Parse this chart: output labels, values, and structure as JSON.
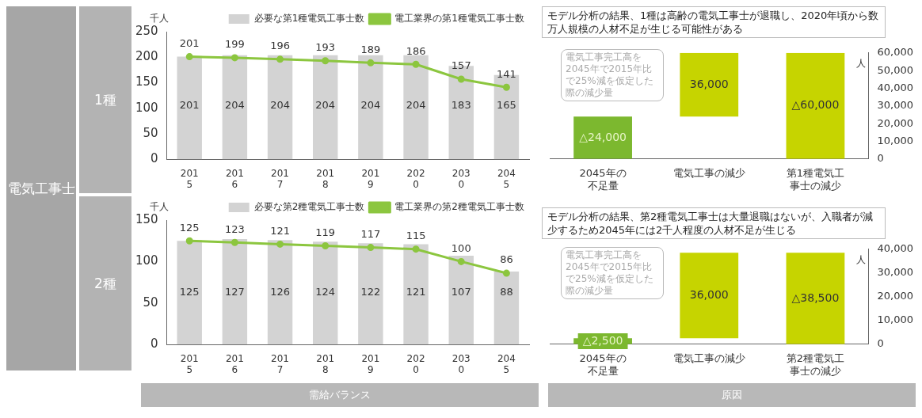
{
  "chart_data": [
    {
      "type": "bar",
      "ylabel": "千人",
      "categories": [
        "2015",
        "2016",
        "2017",
        "2018",
        "2019",
        "2020",
        "2030",
        "2045"
      ],
      "ylim": [
        0,
        250
      ],
      "yticks": [
        0,
        50,
        100,
        150,
        200,
        250
      ],
      "grid": false,
      "legend": "top right",
      "data_labels": true,
      "marker": "circle",
      "annotations": [
        "電気工事士",
        "1種",
        "需給バランス"
      ],
      "series": [
        {
          "name": "必要な第1種電気工事士数",
          "type": "bar",
          "color": "#d3d3d3",
          "values": [
            201,
            204,
            204,
            204,
            204,
            204,
            183,
            165
          ]
        },
        {
          "name": "電工業界の第1種電気工事士数",
          "type": "line",
          "color": "#8cc63f",
          "values": [
            201,
            199,
            196,
            193,
            189,
            186,
            157,
            141
          ]
        }
      ]
    },
    {
      "type": "bar",
      "title": "モデル分析の結果、1種は高齢の電気工事士が退職し、2020年頃から数万人規模の人材不足が生じる可能性がある",
      "ylabel": "人",
      "categories": [
        "2045年の不足量",
        "電気工事の減少",
        "第1種電気工事士の減少"
      ],
      "ylim": [
        0,
        60000
      ],
      "yticks": [
        0,
        {
          "value": 10000,
          "label": "10,000"
        },
        {
          "value": 20000,
          "label": "20,000"
        },
        {
          "value": 30000,
          "label": "30,000"
        },
        {
          "value": 40000,
          "label": "40,000"
        },
        {
          "value": 50000,
          "label": "50,000"
        },
        {
          "value": 60000,
          "label": "60,000"
        }
      ],
      "grid": false,
      "base": [
        0,
        24000,
        0
      ],
      "values": [
        24000,
        36000,
        60000
      ],
      "colors": [
        "#7cb82f",
        "#c6d400",
        "#c6d400"
      ],
      "value_labels": [
        "△24,000",
        "36,000",
        "△60,000"
      ],
      "annotations": [
        "電気工事完工高を2045年で2015年比で25%減を仮定した際の減少量",
        "原因"
      ]
    },
    {
      "type": "bar",
      "ylabel": "千人",
      "categories": [
        "2015",
        "2016",
        "2017",
        "2018",
        "2019",
        "2020",
        "2030",
        "2045"
      ],
      "ylim": [
        0,
        150
      ],
      "yticks": [
        0,
        50,
        100,
        150
      ],
      "grid": false,
      "legend": "top right",
      "data_labels": true,
      "marker": "circle",
      "annotations": [
        "2種"
      ],
      "series": [
        {
          "name": "必要な第2種電気工事士数",
          "type": "bar",
          "color": "#d3d3d3",
          "values": [
            125,
            127,
            126,
            124,
            122,
            121,
            107,
            88
          ]
        },
        {
          "name": "電工業界の第2種電気工事士数",
          "type": "line",
          "color": "#8cc63f",
          "values": [
            125,
            123,
            121,
            119,
            117,
            115,
            100,
            86
          ]
        }
      ]
    },
    {
      "type": "bar",
      "title": "モデル分析の結果、第2種電気工事士は大量退職はないが、入職者が減少するため2045年には2千人程度の人材不足が生じる",
      "ylabel": "人",
      "categories": [
        "2045年の不足量",
        "電気工事の減少",
        "第2種電気工事士の減少"
      ],
      "ylim": [
        0,
        40000
      ],
      "yticks": [
        0,
        {
          "value": 10000,
          "label": "10,000"
        },
        {
          "value": 20000,
          "label": "20,000"
        },
        {
          "value": 30000,
          "label": "30,000"
        },
        {
          "value": 40000,
          "label": "40,000"
        }
      ],
      "grid": false,
      "base": [
        0,
        2500,
        0
      ],
      "values": [
        2500,
        36000,
        38500
      ],
      "colors": [
        "#7cb82f",
        "#c6d400",
        "#c6d400"
      ],
      "value_labels": [
        "△2,500",
        "36,000",
        "△38,500"
      ],
      "annotations": [
        "電気工事完工高を2045年で2015年比で25%減を仮定した際の減少量"
      ]
    }
  ]
}
